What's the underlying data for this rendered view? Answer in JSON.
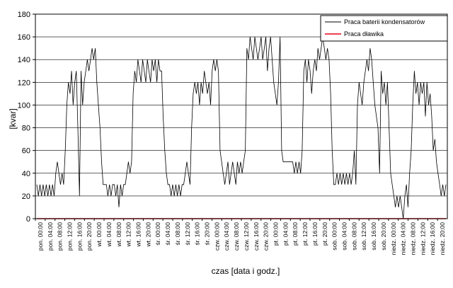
{
  "chart_data": {
    "type": "line",
    "xlabel": "czas [data i godz.]",
    "ylabel": "[kvar]",
    "ylim": [
      0,
      180
    ],
    "yticks": [
      0,
      20,
      40,
      60,
      80,
      100,
      120,
      140,
      160,
      180
    ],
    "grid": "horizontal",
    "legend_position": "top-right",
    "x_tick_labels": [
      "pon. 00:00",
      "pon. 04:00",
      "pon. 08:00",
      "pon. 12:00",
      "pon. 16:00",
      "pon. 20:00",
      "wt. 00:00",
      "wt. 04:00",
      "wt. 08:00",
      "wt. 12:00",
      "wt. 16:00",
      "wt. 20:00",
      "śr. 00:00",
      "śr. 04:00",
      "śr. 08:00",
      "śr. 12:00",
      "śr. 16:00",
      "śr. 20:00",
      "czw. 00:00",
      "czw. 04:00",
      "czw. 08:00",
      "czw. 12:00",
      "czw. 16:00",
      "czw. 20:00",
      "pt. 00:00",
      "pt. 04:00",
      "pt. 08:00",
      "pt. 12:00",
      "pt. 16:00",
      "pt. 20:00",
      "sob. 00:00",
      "sob. 04:00",
      "sob. 08:00",
      "sob. 12:00",
      "sob. 16:00",
      "sob. 20:00",
      "niedz. 00:00",
      "niedz. 04:00",
      "niedz. 08:00",
      "niedz. 12:00",
      "niedz. 16:00",
      "niedz. 20:00"
    ],
    "series": [
      {
        "name": "Praca baterii kondensatorów",
        "color": "#000000",
        "values": [
          [
            0,
            30
          ],
          [
            1,
            20
          ],
          [
            2,
            30
          ],
          [
            3,
            20
          ],
          [
            4,
            30
          ],
          [
            5,
            20
          ],
          [
            6,
            30
          ],
          [
            7,
            20
          ],
          [
            8,
            30
          ],
          [
            9,
            20
          ],
          [
            10,
            30
          ],
          [
            11,
            20
          ],
          [
            12,
            40
          ],
          [
            13,
            50
          ],
          [
            14,
            40
          ],
          [
            15,
            30
          ],
          [
            16,
            40
          ],
          [
            17,
            30
          ],
          [
            18,
            60
          ],
          [
            19,
            100
          ],
          [
            20,
            120
          ],
          [
            21,
            110
          ],
          [
            22,
            130
          ],
          [
            23,
            100
          ],
          [
            24,
            120
          ],
          [
            25,
            130
          ],
          [
            26,
            80
          ],
          [
            27,
            20
          ],
          [
            28,
            130
          ],
          [
            29,
            100
          ],
          [
            30,
            120
          ],
          [
            31,
            130
          ],
          [
            32,
            140
          ],
          [
            33,
            130
          ],
          [
            34,
            140
          ],
          [
            35,
            150
          ],
          [
            36,
            140
          ],
          [
            37,
            150
          ],
          [
            38,
            120
          ],
          [
            39,
            100
          ],
          [
            40,
            80
          ],
          [
            41,
            50
          ],
          [
            42,
            30
          ],
          [
            43,
            30
          ],
          [
            44,
            30
          ],
          [
            45,
            20
          ],
          [
            46,
            30
          ],
          [
            47,
            20
          ],
          [
            48,
            30
          ],
          [
            49,
            30
          ],
          [
            50,
            20
          ],
          [
            51,
            30
          ],
          [
            52,
            10
          ],
          [
            53,
            30
          ],
          [
            54,
            20
          ],
          [
            55,
            30
          ],
          [
            56,
            30
          ],
          [
            57,
            40
          ],
          [
            58,
            50
          ],
          [
            59,
            40
          ],
          [
            60,
            50
          ],
          [
            61,
            110
          ],
          [
            62,
            130
          ],
          [
            63,
            120
          ],
          [
            64,
            140
          ],
          [
            65,
            130
          ],
          [
            66,
            120
          ],
          [
            67,
            140
          ],
          [
            68,
            130
          ],
          [
            69,
            120
          ],
          [
            70,
            140
          ],
          [
            71,
            130
          ],
          [
            72,
            120
          ],
          [
            73,
            140
          ],
          [
            74,
            130
          ],
          [
            75,
            140
          ],
          [
            76,
            120
          ],
          [
            77,
            140
          ],
          [
            78,
            130
          ],
          [
            79,
            130
          ],
          [
            80,
            90
          ],
          [
            81,
            60
          ],
          [
            82,
            40
          ],
          [
            83,
            30
          ],
          [
            84,
            30
          ],
          [
            85,
            20
          ],
          [
            86,
            30
          ],
          [
            87,
            20
          ],
          [
            88,
            30
          ],
          [
            89,
            20
          ],
          [
            90,
            30
          ],
          [
            91,
            20
          ],
          [
            92,
            30
          ],
          [
            93,
            30
          ],
          [
            94,
            40
          ],
          [
            95,
            50
          ],
          [
            96,
            40
          ],
          [
            97,
            30
          ],
          [
            98,
            80
          ],
          [
            99,
            110
          ],
          [
            100,
            120
          ],
          [
            101,
            110
          ],
          [
            102,
            120
          ],
          [
            103,
            100
          ],
          [
            104,
            120
          ],
          [
            105,
            110
          ],
          [
            106,
            130
          ],
          [
            107,
            120
          ],
          [
            108,
            110
          ],
          [
            109,
            120
          ],
          [
            110,
            100
          ],
          [
            111,
            130
          ],
          [
            112,
            140
          ],
          [
            113,
            130
          ],
          [
            114,
            140
          ],
          [
            115,
            130
          ],
          [
            116,
            60
          ],
          [
            117,
            50
          ],
          [
            118,
            40
          ],
          [
            119,
            30
          ],
          [
            120,
            40
          ],
          [
            121,
            50
          ],
          [
            122,
            30
          ],
          [
            123,
            40
          ],
          [
            124,
            50
          ],
          [
            125,
            40
          ],
          [
            126,
            30
          ],
          [
            127,
            50
          ],
          [
            128,
            40
          ],
          [
            129,
            50
          ],
          [
            130,
            40
          ],
          [
            131,
            50
          ],
          [
            132,
            60
          ],
          [
            133,
            150
          ],
          [
            134,
            140
          ],
          [
            135,
            160
          ],
          [
            136,
            150
          ],
          [
            137,
            140
          ],
          [
            138,
            160
          ],
          [
            139,
            150
          ],
          [
            140,
            140
          ],
          [
            141,
            150
          ],
          [
            142,
            160
          ],
          [
            143,
            140
          ],
          [
            144,
            150
          ],
          [
            145,
            160
          ],
          [
            146,
            130
          ],
          [
            147,
            150
          ],
          [
            148,
            160
          ],
          [
            149,
            140
          ],
          [
            150,
            120
          ],
          [
            151,
            110
          ],
          [
            152,
            100
          ],
          [
            153,
            120
          ],
          [
            154,
            160
          ],
          [
            155,
            60
          ],
          [
            156,
            50
          ],
          [
            157,
            50
          ],
          [
            158,
            50
          ],
          [
            159,
            50
          ],
          [
            160,
            50
          ],
          [
            161,
            50
          ],
          [
            162,
            50
          ],
          [
            163,
            40
          ],
          [
            164,
            50
          ],
          [
            165,
            40
          ],
          [
            166,
            50
          ],
          [
            167,
            40
          ],
          [
            168,
            60
          ],
          [
            169,
            130
          ],
          [
            170,
            140
          ],
          [
            171,
            120
          ],
          [
            172,
            140
          ],
          [
            173,
            130
          ],
          [
            174,
            110
          ],
          [
            175,
            130
          ],
          [
            176,
            140
          ],
          [
            177,
            130
          ],
          [
            178,
            150
          ],
          [
            179,
            140
          ],
          [
            180,
            150
          ],
          [
            181,
            160
          ],
          [
            182,
            150
          ],
          [
            183,
            140
          ],
          [
            184,
            150
          ],
          [
            185,
            140
          ],
          [
            186,
            110
          ],
          [
            187,
            60
          ],
          [
            188,
            30
          ],
          [
            189,
            30
          ],
          [
            190,
            40
          ],
          [
            191,
            30
          ],
          [
            192,
            40
          ],
          [
            193,
            30
          ],
          [
            194,
            40
          ],
          [
            195,
            30
          ],
          [
            196,
            40
          ],
          [
            197,
            30
          ],
          [
            198,
            40
          ],
          [
            199,
            30
          ],
          [
            200,
            40
          ],
          [
            201,
            60
          ],
          [
            202,
            30
          ],
          [
            203,
            100
          ],
          [
            204,
            120
          ],
          [
            205,
            110
          ],
          [
            206,
            100
          ],
          [
            207,
            120
          ],
          [
            208,
            130
          ],
          [
            209,
            140
          ],
          [
            210,
            130
          ],
          [
            211,
            150
          ],
          [
            212,
            140
          ],
          [
            213,
            120
          ],
          [
            214,
            100
          ],
          [
            215,
            90
          ],
          [
            216,
            80
          ],
          [
            217,
            40
          ],
          [
            218,
            130
          ],
          [
            219,
            110
          ],
          [
            220,
            120
          ],
          [
            221,
            100
          ],
          [
            222,
            120
          ],
          [
            223,
            80
          ],
          [
            224,
            40
          ],
          [
            225,
            30
          ],
          [
            226,
            20
          ],
          [
            227,
            10
          ],
          [
            228,
            20
          ],
          [
            229,
            10
          ],
          [
            230,
            20
          ],
          [
            231,
            10
          ],
          [
            232,
            0
          ],
          [
            233,
            20
          ],
          [
            234,
            30
          ],
          [
            235,
            10
          ],
          [
            236,
            40
          ],
          [
            237,
            60
          ],
          [
            238,
            100
          ],
          [
            239,
            130
          ],
          [
            240,
            110
          ],
          [
            241,
            120
          ],
          [
            242,
            100
          ],
          [
            243,
            120
          ],
          [
            244,
            110
          ],
          [
            245,
            120
          ],
          [
            246,
            90
          ],
          [
            247,
            120
          ],
          [
            248,
            100
          ],
          [
            249,
            110
          ],
          [
            250,
            90
          ],
          [
            251,
            60
          ],
          [
            252,
            70
          ],
          [
            253,
            50
          ],
          [
            254,
            40
          ],
          [
            255,
            30
          ],
          [
            256,
            20
          ],
          [
            257,
            30
          ],
          [
            258,
            20
          ],
          [
            259,
            30
          ]
        ]
      },
      {
        "name": "Praca dławika",
        "color": "#e8001c",
        "values": [
          [
            0,
            0
          ],
          [
            259,
            0
          ]
        ]
      }
    ]
  }
}
